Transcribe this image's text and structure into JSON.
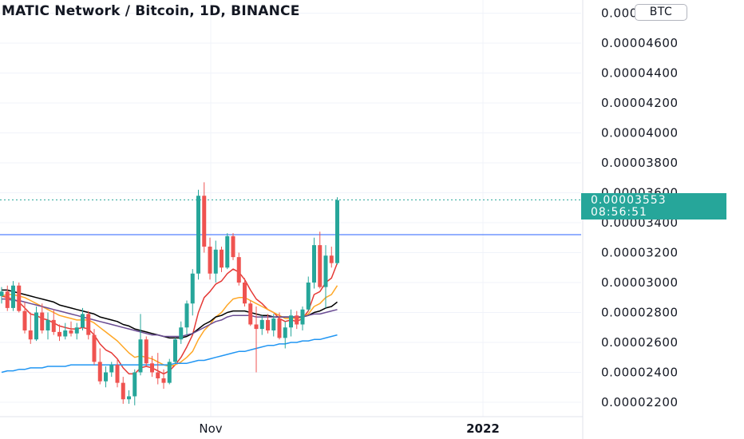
{
  "title": "MATIC Network / Bitcoin, 1D, BINANCE",
  "currency_badge": "BTC",
  "last_price": {
    "value": "0.00003553",
    "countdown": "08:56:51",
    "color": "#26a69a"
  },
  "price_axis_labels": [
    "0.00004800",
    "0.00004600",
    "0.00004400",
    "0.00004200",
    "0.00004000",
    "0.00003800",
    "0.00003600",
    "0.00003400",
    "0.00003200",
    "0.00003000",
    "0.00002800",
    "0.00002600",
    "0.00002400",
    "0.00002200"
  ],
  "time_axis_labels": [
    "Nov",
    "2022"
  ],
  "colors": {
    "up": "#26a69a",
    "down": "#ef5350",
    "ma_fast": "#e53935",
    "ma_mid": "#ffa726",
    "ma_slow": "#000000",
    "ma_purple": "#6a4c93",
    "ma_long": "#2196f3",
    "horizontal_line": "#2962ff"
  },
  "chart_data": {
    "type": "candlestick",
    "title": "MATIC Network / Bitcoin, 1D, BINANCE",
    "ylim": [
      2.15e-05,
      5e-05
    ],
    "last_price": 3.553e-05,
    "horizontal_line": 3.32e-05,
    "x_ticks": [
      "Nov",
      "2022"
    ],
    "candles": [
      [
        2.91e-05,
        2.97e-05,
        2.86e-05,
        2.94e-05
      ],
      [
        2.94e-05,
        2.98e-05,
        2.81e-05,
        2.83e-05
      ],
      [
        2.83e-05,
        3.01e-05,
        2.81e-05,
        2.98e-05
      ],
      [
        2.98e-05,
        3e-05,
        2.8e-05,
        2.81e-05
      ],
      [
        2.81e-05,
        2.87e-05,
        2.66e-05,
        2.68e-05
      ],
      [
        2.68e-05,
        2.8e-05,
        2.59e-05,
        2.62e-05
      ],
      [
        2.62e-05,
        2.84e-05,
        2.61e-05,
        2.8e-05
      ],
      [
        2.8e-05,
        2.86e-05,
        2.66e-05,
        2.68e-05
      ],
      [
        2.68e-05,
        2.8e-05,
        2.62e-05,
        2.75e-05
      ],
      [
        2.75e-05,
        2.82e-05,
        2.65e-05,
        2.67e-05
      ],
      [
        2.67e-05,
        2.72e-05,
        2.61e-05,
        2.64e-05
      ],
      [
        2.64e-05,
        2.73e-05,
        2.62e-05,
        2.68e-05
      ],
      [
        2.68e-05,
        2.74e-05,
        2.64e-05,
        2.66e-05
      ],
      [
        2.66e-05,
        2.73e-05,
        2.62e-05,
        2.7e-05
      ],
      [
        2.7e-05,
        2.83e-05,
        2.68e-05,
        2.79e-05
      ],
      [
        2.79e-05,
        2.81e-05,
        2.62e-05,
        2.65e-05
      ],
      [
        2.65e-05,
        2.69e-05,
        2.45e-05,
        2.47e-05
      ],
      [
        2.47e-05,
        2.56e-05,
        2.32e-05,
        2.34e-05
      ],
      [
        2.34e-05,
        2.44e-05,
        2.3e-05,
        2.4e-05
      ],
      [
        2.4e-05,
        2.47e-05,
        2.37e-05,
        2.45e-05
      ],
      [
        2.45e-05,
        2.49e-05,
        2.3e-05,
        2.33e-05
      ],
      [
        2.33e-05,
        2.37e-05,
        2.19e-05,
        2.22e-05
      ],
      [
        2.22e-05,
        2.28e-05,
        2.19e-05,
        2.24e-05
      ],
      [
        2.24e-05,
        2.42e-05,
        2.18e-05,
        2.4e-05
      ],
      [
        2.4e-05,
        2.79e-05,
        2.38e-05,
        2.62e-05
      ],
      [
        2.62e-05,
        2.64e-05,
        2.44e-05,
        2.46e-05
      ],
      [
        2.46e-05,
        2.51e-05,
        2.37e-05,
        2.4e-05
      ],
      [
        2.4e-05,
        2.53e-05,
        2.32e-05,
        2.36e-05
      ],
      [
        2.36e-05,
        2.42e-05,
        2.29e-05,
        2.33e-05
      ],
      [
        2.33e-05,
        2.49e-05,
        2.32e-05,
        2.47e-05
      ],
      [
        2.47e-05,
        2.63e-05,
        2.46e-05,
        2.62e-05
      ],
      [
        2.62e-05,
        2.74e-05,
        2.59e-05,
        2.7e-05
      ],
      [
        2.7e-05,
        2.88e-05,
        2.65e-05,
        2.86e-05
      ],
      [
        2.86e-05,
        3.09e-05,
        2.78e-05,
        3.06e-05
      ],
      [
        3.06e-05,
        3.62e-05,
        3.02e-05,
        3.58e-05
      ],
      [
        3.58e-05,
        3.67e-05,
        3.2e-05,
        3.24e-05
      ],
      [
        3.24e-05,
        3.3e-05,
        3.02e-05,
        3.06e-05
      ],
      [
        3.06e-05,
        3.28e-05,
        3e-05,
        3.22e-05
      ],
      [
        3.22e-05,
        3.24e-05,
        3.07e-05,
        3.1e-05
      ],
      [
        3.1e-05,
        3.33e-05,
        3.09e-05,
        3.31e-05
      ],
      [
        3.31e-05,
        3.33e-05,
        3.15e-05,
        3.17e-05
      ],
      [
        3.17e-05,
        3.2e-05,
        2.98e-05,
        3e-05
      ],
      [
        3e-05,
        3.03e-05,
        2.84e-05,
        2.86e-05
      ],
      [
        2.86e-05,
        2.88e-05,
        2.71e-05,
        2.72e-05
      ],
      [
        2.72e-05,
        2.84e-05,
        2.4e-05,
        2.69e-05
      ],
      [
        2.69e-05,
        2.78e-05,
        2.65e-05,
        2.75e-05
      ],
      [
        2.75e-05,
        2.79e-05,
        2.66e-05,
        2.68e-05
      ],
      [
        2.68e-05,
        2.79e-05,
        2.64e-05,
        2.76e-05
      ],
      [
        2.76e-05,
        2.8e-05,
        2.62e-05,
        2.63e-05
      ],
      [
        2.63e-05,
        2.74e-05,
        2.56e-05,
        2.7e-05
      ],
      [
        2.7e-05,
        2.82e-05,
        2.64e-05,
        2.78e-05
      ],
      [
        2.78e-05,
        2.81e-05,
        2.69e-05,
        2.72e-05
      ],
      [
        2.72e-05,
        2.84e-05,
        2.68e-05,
        2.82e-05
      ],
      [
        2.82e-05,
        3.04e-05,
        2.81e-05,
        3e-05
      ],
      [
        3e-05,
        3.3e-05,
        2.96e-05,
        3.25e-05
      ],
      [
        3.25e-05,
        3.34e-05,
        2.96e-05,
        2.97e-05
      ],
      [
        2.97e-05,
        3.25e-05,
        2.83e-05,
        3.18e-05
      ],
      [
        3.18e-05,
        3.24e-05,
        3.1e-05,
        3.13e-05
      ],
      [
        3.13e-05,
        3.57e-05,
        3.12e-05,
        3.55e-05
      ]
    ],
    "ma_series": [
      {
        "color": "#e53935",
        "values": [
          2.91e-05,
          2.9e-05,
          2.89e-05,
          2.87e-05,
          2.83e-05,
          2.79e-05,
          2.78e-05,
          2.76e-05,
          2.75e-05,
          2.73e-05,
          2.71e-05,
          2.7e-05,
          2.69e-05,
          2.69e-05,
          2.7e-05,
          2.69e-05,
          2.65e-05,
          2.59e-05,
          2.55e-05,
          2.53e-05,
          2.49e-05,
          2.43e-05,
          2.39e-05,
          2.39e-05,
          2.43e-05,
          2.44e-05,
          2.43e-05,
          2.41e-05,
          2.39e-05,
          2.41e-05,
          2.45e-05,
          2.5e-05,
          2.57e-05,
          2.65e-05,
          2.8e-05,
          2.9e-05,
          2.94e-05,
          2.99e-05,
          3.01e-05,
          3.06e-05,
          3.09e-05,
          3.07e-05,
          3.02e-05,
          2.95e-05,
          2.89e-05,
          2.86e-05,
          2.82e-05,
          2.8e-05,
          2.76e-05,
          2.74e-05,
          2.75e-05,
          2.74e-05,
          2.76e-05,
          2.81e-05,
          2.92e-05,
          2.94e-05,
          3e-05,
          3.03e-05,
          3.13e-05
        ]
      },
      {
        "color": "#ffa726",
        "values": [
          2.91e-05,
          2.92e-05,
          2.92e-05,
          2.91e-05,
          2.9e-05,
          2.88e-05,
          2.86e-05,
          2.84e-05,
          2.82e-05,
          2.8e-05,
          2.78e-05,
          2.77e-05,
          2.76e-05,
          2.75e-05,
          2.75e-05,
          2.75e-05,
          2.73e-05,
          2.7e-05,
          2.67e-05,
          2.64e-05,
          2.61e-05,
          2.57e-05,
          2.53e-05,
          2.5e-05,
          2.51e-05,
          2.5e-05,
          2.49e-05,
          2.47e-05,
          2.45e-05,
          2.44e-05,
          2.45e-05,
          2.47e-05,
          2.5e-05,
          2.54e-05,
          2.62e-05,
          2.68e-05,
          2.72e-05,
          2.77e-05,
          2.8e-05,
          2.85e-05,
          2.89e-05,
          2.9e-05,
          2.9e-05,
          2.88e-05,
          2.86e-05,
          2.84e-05,
          2.82e-05,
          2.8e-05,
          2.78e-05,
          2.76e-05,
          2.76e-05,
          2.76e-05,
          2.77e-05,
          2.79e-05,
          2.84e-05,
          2.86e-05,
          2.9e-05,
          2.92e-05,
          2.98e-05
        ]
      },
      {
        "color": "#000000",
        "values": [
          2.95e-05,
          2.95e-05,
          2.94e-05,
          2.93e-05,
          2.92e-05,
          2.91e-05,
          2.9e-05,
          2.89e-05,
          2.88e-05,
          2.87e-05,
          2.85e-05,
          2.84e-05,
          2.83e-05,
          2.82e-05,
          2.81e-05,
          2.8e-05,
          2.79e-05,
          2.77e-05,
          2.76e-05,
          2.75e-05,
          2.74e-05,
          2.72e-05,
          2.71e-05,
          2.69e-05,
          2.68e-05,
          2.67e-05,
          2.66e-05,
          2.65e-05,
          2.64e-05,
          2.63e-05,
          2.63e-05,
          2.63e-05,
          2.64e-05,
          2.66e-05,
          2.69e-05,
          2.72e-05,
          2.74e-05,
          2.77e-05,
          2.78e-05,
          2.8e-05,
          2.81e-05,
          2.81e-05,
          2.81e-05,
          2.8e-05,
          2.79e-05,
          2.78e-05,
          2.78e-05,
          2.77e-05,
          2.77e-05,
          2.77e-05,
          2.77e-05,
          2.77e-05,
          2.77e-05,
          2.78e-05,
          2.8e-05,
          2.81e-05,
          2.83e-05,
          2.84e-05,
          2.87e-05
        ]
      },
      {
        "color": "#6a4c93",
        "values": [
          2.89e-05,
          2.89e-05,
          2.88e-05,
          2.88e-05,
          2.87e-05,
          2.86e-05,
          2.85e-05,
          2.84e-05,
          2.83e-05,
          2.82e-05,
          2.81e-05,
          2.8e-05,
          2.79e-05,
          2.78e-05,
          2.77e-05,
          2.76e-05,
          2.75e-05,
          2.74e-05,
          2.73e-05,
          2.72e-05,
          2.71e-05,
          2.7e-05,
          2.69e-05,
          2.68e-05,
          2.67e-05,
          2.66e-05,
          2.65e-05,
          2.65e-05,
          2.64e-05,
          2.64e-05,
          2.64e-05,
          2.64e-05,
          2.65e-05,
          2.66e-05,
          2.68e-05,
          2.7e-05,
          2.72e-05,
          2.74e-05,
          2.75e-05,
          2.77e-05,
          2.78e-05,
          2.78e-05,
          2.78e-05,
          2.78e-05,
          2.77e-05,
          2.77e-05,
          2.77e-05,
          2.77e-05,
          2.77e-05,
          2.77e-05,
          2.77e-05,
          2.77e-05,
          2.77e-05,
          2.78e-05,
          2.79e-05,
          2.79e-05,
          2.8e-05,
          2.81e-05,
          2.82e-05
        ]
      },
      {
        "color": "#2196f3",
        "values": [
          2.4e-05,
          2.41e-05,
          2.41e-05,
          2.42e-05,
          2.42e-05,
          2.43e-05,
          2.43e-05,
          2.43e-05,
          2.44e-05,
          2.44e-05,
          2.44e-05,
          2.44e-05,
          2.45e-05,
          2.45e-05,
          2.45e-05,
          2.45e-05,
          2.45e-05,
          2.45e-05,
          2.45e-05,
          2.45e-05,
          2.45e-05,
          2.45e-05,
          2.45e-05,
          2.45e-05,
          2.45e-05,
          2.45e-05,
          2.45e-05,
          2.45e-05,
          2.45e-05,
          2.45e-05,
          2.46e-05,
          2.46e-05,
          2.46e-05,
          2.47e-05,
          2.48e-05,
          2.48e-05,
          2.49e-05,
          2.5e-05,
          2.51e-05,
          2.52e-05,
          2.53e-05,
          2.54e-05,
          2.54e-05,
          2.55e-05,
          2.56e-05,
          2.57e-05,
          2.58e-05,
          2.58e-05,
          2.59e-05,
          2.59e-05,
          2.6e-05,
          2.6e-05,
          2.61e-05,
          2.61e-05,
          2.62e-05,
          2.62e-05,
          2.63e-05,
          2.64e-05,
          2.65e-05
        ]
      }
    ]
  }
}
